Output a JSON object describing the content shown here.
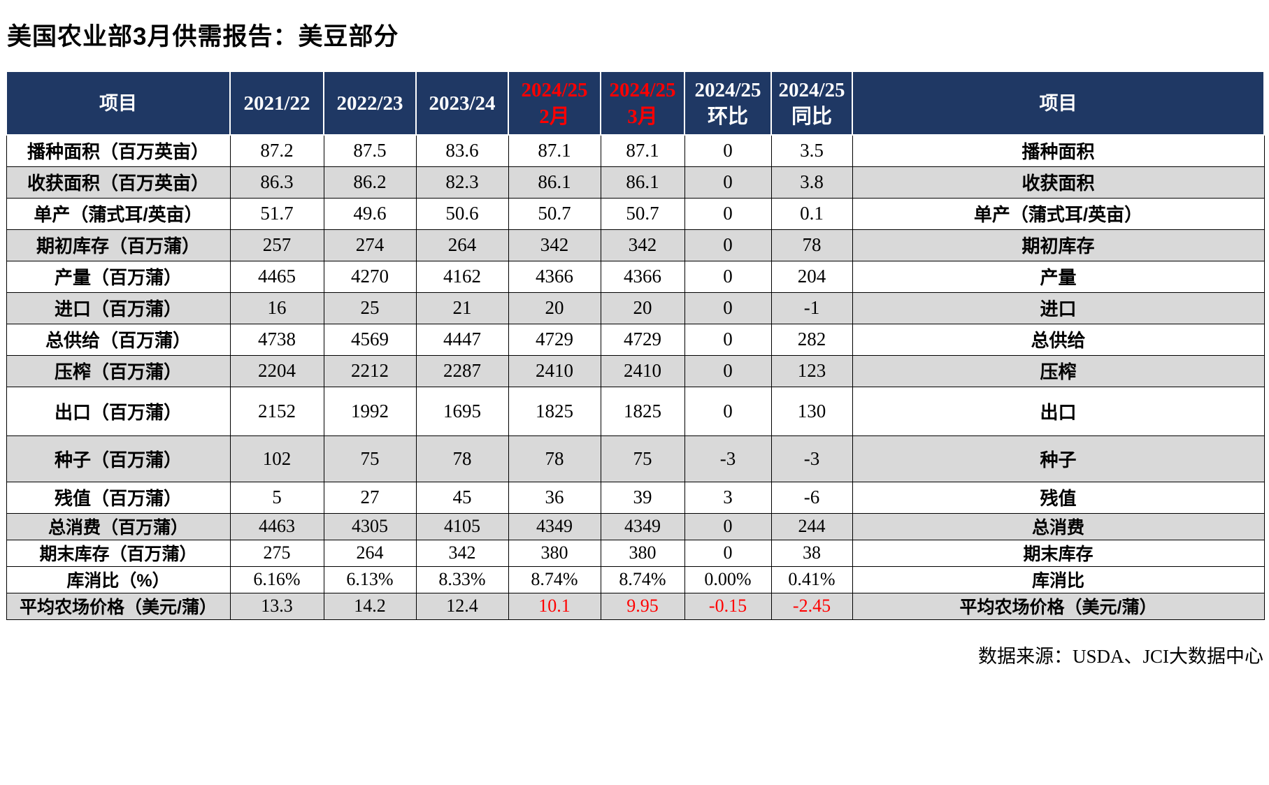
{
  "page": {
    "title": "美国农业部3月供需报告：美豆部分",
    "footer": "数据来源：USDA、JCI大数据中心"
  },
  "colors": {
    "header_bg": "#1F3864",
    "header_text": "#FFFFFF",
    "row_shade": "#D9D9D9",
    "highlight_red": "#FF0000",
    "body_text": "#000000"
  },
  "table": {
    "headers": [
      {
        "key": "item-left",
        "line1": "项目",
        "red": false,
        "year": false
      },
      {
        "key": "2021-22",
        "line1": "2021/22",
        "red": false,
        "year": true
      },
      {
        "key": "2022-23",
        "line1": "2022/23",
        "red": false,
        "year": true
      },
      {
        "key": "2023-24",
        "line1": "2023/24",
        "red": false,
        "year": true
      },
      {
        "key": "2024-25-feb",
        "line1": "2024/25",
        "line2": "2月",
        "red": true,
        "year": true
      },
      {
        "key": "2024-25-mar",
        "line1": "2024/25",
        "line2": "3月",
        "red": true,
        "year": true
      },
      {
        "key": "2024-25-mom",
        "line1": "2024/25",
        "line2": "环比",
        "red": false,
        "year": true
      },
      {
        "key": "2024-25-yoy",
        "line1": "2024/25",
        "line2": "同比",
        "red": false,
        "year": true
      },
      {
        "key": "item-right",
        "line1": "项目",
        "red": false,
        "year": false
      }
    ],
    "rows": [
      {
        "item": "播种面积（百万英亩）",
        "values": [
          "87.2",
          "87.5",
          "83.6",
          "87.1",
          "87.1",
          "0",
          "3.5"
        ],
        "item_right": "播种面积",
        "shaded": false,
        "size": "n"
      },
      {
        "item": "收获面积（百万英亩）",
        "values": [
          "86.3",
          "86.2",
          "82.3",
          "86.1",
          "86.1",
          "0",
          "3.8"
        ],
        "item_right": "收获面积",
        "shaded": true,
        "size": "n"
      },
      {
        "item": "单产（蒲式耳/英亩）",
        "values": [
          "51.7",
          "49.6",
          "50.6",
          "50.7",
          "50.7",
          "0",
          "0.1"
        ],
        "item_right": "单产（蒲式耳/英亩）",
        "shaded": false,
        "size": "n"
      },
      {
        "item": "期初库存（百万蒲）",
        "values": [
          "257",
          "274",
          "264",
          "342",
          "342",
          "0",
          "78"
        ],
        "item_right": "期初库存",
        "shaded": true,
        "size": "n"
      },
      {
        "item": "产量（百万蒲）",
        "values": [
          "4465",
          "4270",
          "4162",
          "4366",
          "4366",
          "0",
          "204"
        ],
        "item_right": "产量",
        "shaded": false,
        "size": "n"
      },
      {
        "item": "进口（百万蒲）",
        "values": [
          "16",
          "25",
          "21",
          "20",
          "20",
          "0",
          "-1"
        ],
        "item_right": "进口",
        "shaded": true,
        "size": "n"
      },
      {
        "item": "总供给（百万蒲）",
        "values": [
          "4738",
          "4569",
          "4447",
          "4729",
          "4729",
          "0",
          "282"
        ],
        "item_right": "总供给",
        "shaded": false,
        "size": "n"
      },
      {
        "item": "压榨（百万蒲）",
        "values": [
          "2204",
          "2212",
          "2287",
          "2410",
          "2410",
          "0",
          "123"
        ],
        "item_right": "压榨",
        "shaded": true,
        "size": "n"
      },
      {
        "item": "出口（百万蒲）",
        "values": [
          "2152",
          "1992",
          "1695",
          "1825",
          "1825",
          "0",
          "130"
        ],
        "item_right": "出口",
        "shaded": false,
        "size": "xl"
      },
      {
        "item": "种子（百万蒲）",
        "values": [
          "102",
          "75",
          "78",
          "78",
          "75",
          "-3",
          "-3"
        ],
        "item_right": "种子",
        "shaded": true,
        "size": "lg"
      },
      {
        "item": "残值（百万蒲）",
        "values": [
          "5",
          "27",
          "45",
          "36",
          "39",
          "3",
          "-6"
        ],
        "item_right": "残值",
        "shaded": false,
        "size": "n"
      },
      {
        "item": "总消费（百万蒲）",
        "values": [
          "4463",
          "4305",
          "4105",
          "4349",
          "4349",
          "0",
          "244"
        ],
        "item_right": "总消费",
        "shaded": true,
        "size": "sm"
      },
      {
        "item": "期末库存（百万蒲）",
        "values": [
          "275",
          "264",
          "342",
          "380",
          "380",
          "0",
          "38"
        ],
        "item_right": "期末库存",
        "shaded": false,
        "size": "sm"
      },
      {
        "item": "库消比（%）",
        "values": [
          "6.16%",
          "6.13%",
          "8.33%",
          "8.74%",
          "8.74%",
          "0.00%",
          "0.41%"
        ],
        "item_right": "库消比",
        "shaded": false,
        "size": "sm"
      },
      {
        "item": "平均农场价格（美元/蒲）",
        "values": [
          "13.3",
          "14.2",
          "12.4",
          "10.1",
          "9.95",
          "-0.15",
          "-2.45"
        ],
        "item_right": "平均农场价格（美元/蒲）",
        "shaded": true,
        "size": "sm",
        "red_cols": [
          3,
          4,
          5,
          6
        ]
      }
    ]
  }
}
